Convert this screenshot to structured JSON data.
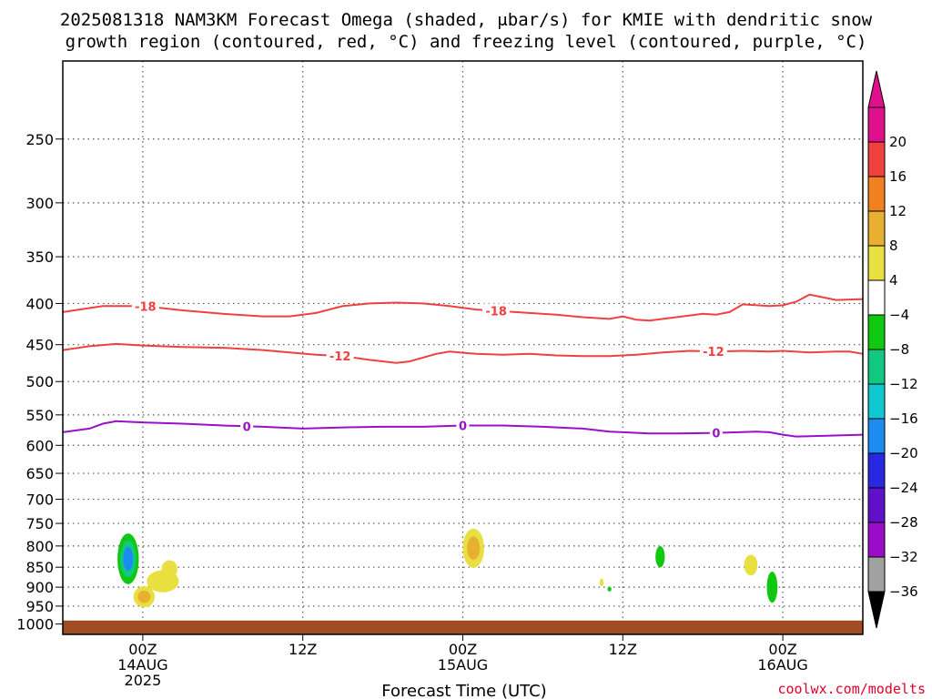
{
  "chart_data": {
    "type": "time-height",
    "title_line1": "2025081318 NAM3KM Forecast Omega (shaded, μbar/s) for KMIE with dendritic snow",
    "title_line2": "growth region (contoured, red, °C) and freezing level (contoured, purple, °C)",
    "xlabel": "Forecast Time (UTC)",
    "credit": "coolwx.com/modelts",
    "x_hours_range": [
      -6,
      54
    ],
    "x_ticks": [
      {
        "hour": 0,
        "lines": [
          "00Z",
          "14AUG",
          "2025"
        ]
      },
      {
        "hour": 12,
        "lines": [
          "12Z"
        ]
      },
      {
        "hour": 24,
        "lines": [
          "00Z",
          "15AUG"
        ]
      },
      {
        "hour": 36,
        "lines": [
          "12Z"
        ]
      },
      {
        "hour": 48,
        "lines": [
          "00Z",
          "16AUG"
        ]
      }
    ],
    "y_pressure_range": [
      200,
      1030
    ],
    "y_ticks": [
      250,
      300,
      350,
      400,
      450,
      500,
      550,
      600,
      650,
      700,
      750,
      800,
      850,
      900,
      950,
      1000
    ],
    "contours": [
      {
        "name": "-18",
        "color": "#f04040",
        "label": "-18",
        "label_hours": [
          0.2,
          26.5
        ],
        "points": [
          [
            -6,
            410
          ],
          [
            -3,
            403
          ],
          [
            0,
            403
          ],
          [
            3,
            408
          ],
          [
            6,
            412
          ],
          [
            9,
            415
          ],
          [
            11,
            415
          ],
          [
            13,
            411
          ],
          [
            15,
            403
          ],
          [
            17,
            400
          ],
          [
            19,
            399
          ],
          [
            21,
            400
          ],
          [
            23,
            403
          ],
          [
            25,
            407
          ],
          [
            27,
            409
          ],
          [
            29,
            411
          ],
          [
            31,
            413
          ],
          [
            33,
            416
          ],
          [
            35,
            418
          ],
          [
            36,
            415
          ],
          [
            37,
            419
          ],
          [
            38,
            420
          ],
          [
            40,
            416
          ],
          [
            42,
            412
          ],
          [
            43,
            413
          ],
          [
            44,
            410
          ],
          [
            45,
            401
          ],
          [
            47,
            403
          ],
          [
            48,
            402
          ],
          [
            49,
            398
          ],
          [
            50,
            390
          ],
          [
            51,
            393
          ],
          [
            52,
            396
          ],
          [
            54,
            395
          ]
        ]
      },
      {
        "name": "-12",
        "color": "#f04040",
        "label": "-12",
        "label_hours": [
          14.8,
          42.8
        ],
        "points": [
          [
            -6,
            457
          ],
          [
            -4,
            452
          ],
          [
            -2,
            449
          ],
          [
            0,
            451
          ],
          [
            3,
            453
          ],
          [
            6,
            454
          ],
          [
            9,
            457
          ],
          [
            11,
            460
          ],
          [
            13,
            463
          ],
          [
            15,
            465
          ],
          [
            17,
            470
          ],
          [
            19,
            474
          ],
          [
            20,
            472
          ],
          [
            22,
            462
          ],
          [
            23,
            459
          ],
          [
            25,
            462
          ],
          [
            27,
            463
          ],
          [
            29,
            462
          ],
          [
            31,
            464
          ],
          [
            33,
            465
          ],
          [
            35,
            465
          ],
          [
            37,
            463
          ],
          [
            39,
            460
          ],
          [
            41,
            458
          ],
          [
            43,
            459
          ],
          [
            45,
            458
          ],
          [
            47,
            459
          ],
          [
            48,
            458
          ],
          [
            50,
            460
          ],
          [
            52,
            459
          ],
          [
            53,
            459
          ],
          [
            54,
            462
          ]
        ]
      },
      {
        "name": "0",
        "color": "#9a10c8",
        "label": "0",
        "label_hours": [
          7.8,
          24,
          43
        ],
        "points": [
          [
            -6,
            578
          ],
          [
            -4,
            572
          ],
          [
            -3,
            564
          ],
          [
            -2,
            560
          ],
          [
            0,
            562
          ],
          [
            3,
            564
          ],
          [
            6,
            567
          ],
          [
            9,
            569
          ],
          [
            12,
            572
          ],
          [
            15,
            570
          ],
          [
            18,
            569
          ],
          [
            21,
            569
          ],
          [
            24,
            567
          ],
          [
            27,
            567
          ],
          [
            30,
            569
          ],
          [
            33,
            572
          ],
          [
            35,
            577
          ],
          [
            36,
            578
          ],
          [
            38,
            580
          ],
          [
            40,
            580
          ],
          [
            43,
            579
          ],
          [
            46,
            577
          ],
          [
            47,
            578
          ],
          [
            48,
            582
          ],
          [
            49,
            585
          ],
          [
            51,
            584
          ],
          [
            54,
            582
          ]
        ]
      }
    ],
    "ground": {
      "color": "#a04c24",
      "surface_pressure": 990
    },
    "omega_colorbar": {
      "levels": [
        -36,
        -32,
        -28,
        -24,
        -20,
        -16,
        -12,
        -8,
        -4,
        4,
        8,
        12,
        16,
        20
      ],
      "colors": [
        "#a0a0a0",
        "#9c0cc8",
        "#6010c8",
        "#2828e0",
        "#1c8cf0",
        "#10c8d0",
        "#10c880",
        "#10c810",
        "#ffffff",
        "#e8e040",
        "#e8b030",
        "#f08020",
        "#f04040",
        "#e0108c"
      ],
      "under_color": "#000000",
      "over_color": "#e0108c"
    },
    "omega_features": [
      {
        "hour": -1.1,
        "pressure": 830,
        "rx_hours": 0.8,
        "rp": 60,
        "layers": [
          "#10c810",
          "#10c880",
          "#1c8cf0"
        ]
      },
      {
        "hour": 0.1,
        "pressure": 925,
        "rx_hours": 0.8,
        "rp": 28,
        "layers": [
          "#e8e040",
          "#e8b030"
        ]
      },
      {
        "hour": 1.5,
        "pressure": 885,
        "rx_hours": 1.2,
        "rp": 28,
        "layers": [
          "#e8e040"
        ]
      },
      {
        "hour": 2.0,
        "pressure": 855,
        "rx_hours": 0.6,
        "rp": 22,
        "layers": [
          "#e8e040"
        ]
      },
      {
        "hour": 24.8,
        "pressure": 805,
        "rx_hours": 0.8,
        "rp": 45,
        "layers": [
          "#e8e040",
          "#e8b030"
        ]
      },
      {
        "hour": 34.4,
        "pressure": 888,
        "rx_hours": 0.15,
        "rp": 10,
        "layers": [
          "#e8e040"
        ]
      },
      {
        "hour": 35.0,
        "pressure": 905,
        "rx_hours": 0.15,
        "rp": 6,
        "layers": [
          "#10c810"
        ]
      },
      {
        "hour": 38.8,
        "pressure": 825,
        "rx_hours": 0.35,
        "rp": 25,
        "layers": [
          "#10c810"
        ]
      },
      {
        "hour": 45.6,
        "pressure": 845,
        "rx_hours": 0.5,
        "rp": 25,
        "layers": [
          "#e8e040"
        ]
      },
      {
        "hour": 47.2,
        "pressure": 900,
        "rx_hours": 0.4,
        "rp": 40,
        "layers": [
          "#10c810"
        ]
      }
    ]
  }
}
